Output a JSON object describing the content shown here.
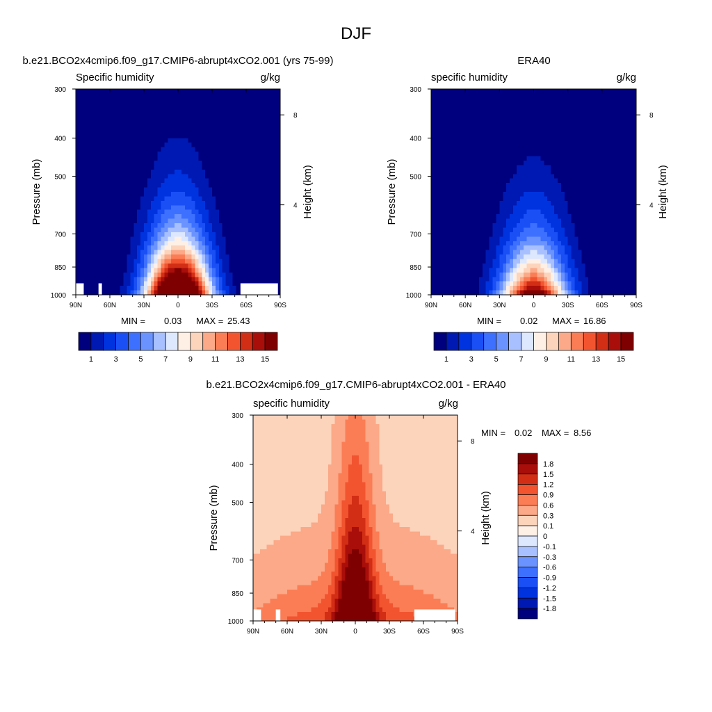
{
  "figure_title": "DJF",
  "colors": {
    "ramp15": [
      "#00007f",
      "#0019b2",
      "#0033e0",
      "#1a4ff5",
      "#3d70ff",
      "#6b93ff",
      "#a8c0ff",
      "#dde8ff",
      "#fff0e6",
      "#fcd3bb",
      "#fba988",
      "#fb7d55",
      "#f25430",
      "#d22e15",
      "#a90e0a",
      "#7f0000"
    ],
    "diff_ramp": [
      "#00007f",
      "#0019b2",
      "#0033e0",
      "#1a4ff5",
      "#3d70ff",
      "#6b93ff",
      "#a8c0ff",
      "#dde8ff",
      "#fff0e6",
      "#fcd3bb",
      "#fba988",
      "#fb7d55",
      "#f25430",
      "#d22e15",
      "#a90e0a",
      "#7f0000"
    ]
  },
  "chart_data": [
    {
      "id": "model",
      "type": "contour",
      "title": "b.e21.BCO2x4cmip6.f09_g17.CMIP6-abrupt4xCO2.001 (yrs 75-99)",
      "left_subtitle": "Specific humidity",
      "right_subtitle": "g/kg",
      "ylabel": "Pressure (mb)",
      "y2label": "Height (km)",
      "xticks": [
        "90N",
        "60N",
        "30N",
        "0",
        "30S",
        "60S",
        "90S"
      ],
      "yticks": [
        "300",
        "400",
        "500",
        "700",
        "850",
        "1000"
      ],
      "y2ticks": [
        "8",
        "4"
      ],
      "ylim": [
        1000,
        300
      ],
      "xlim": [
        "90N",
        "90S"
      ],
      "min_label": "MIN =",
      "min": "0.03",
      "max_label": "MAX =",
      "max": "25.43",
      "colorbar_labels": [
        "1",
        "3",
        "5",
        "7",
        "9",
        "11",
        "13",
        "15"
      ],
      "contour_levels": [
        1,
        2,
        3,
        4,
        5,
        6,
        7,
        8,
        9,
        10,
        11,
        12,
        13,
        14,
        15
      ],
      "peak_latitude": 0,
      "peak_value": 25.43,
      "grid": false
    },
    {
      "id": "obs",
      "type": "contour",
      "title": "ERA40",
      "left_subtitle": "specific humidity",
      "right_subtitle": "g/kg",
      "ylabel": "Pressure (mb)",
      "y2label": "Height (km)",
      "xticks": [
        "90N",
        "60N",
        "30N",
        "0",
        "30S",
        "60S",
        "90S"
      ],
      "yticks": [
        "300",
        "400",
        "500",
        "700",
        "850",
        "1000"
      ],
      "y2ticks": [
        "8",
        "4"
      ],
      "ylim": [
        1000,
        300
      ],
      "min_label": "MIN =",
      "min": "0.02",
      "max_label": "MAX =",
      "max": "16.86",
      "colorbar_labels": [
        "1",
        "3",
        "5",
        "7",
        "9",
        "11",
        "13",
        "15"
      ],
      "contour_levels": [
        1,
        2,
        3,
        4,
        5,
        6,
        7,
        8,
        9,
        10,
        11,
        12,
        13,
        14,
        15
      ],
      "peak_latitude": 0,
      "peak_value": 16.86,
      "grid": false
    },
    {
      "id": "diff",
      "type": "contour",
      "title": "b.e21.BCO2x4cmip6.f09_g17.CMIP6-abrupt4xCO2.001 - ERA40",
      "left_subtitle": "specific humidity",
      "right_subtitle": "g/kg",
      "ylabel": "Pressure (mb)",
      "y2label": "Height (km)",
      "xticks": [
        "90N",
        "60N",
        "30N",
        "0",
        "30S",
        "60S",
        "90S"
      ],
      "yticks": [
        "300",
        "400",
        "500",
        "700",
        "850",
        "1000"
      ],
      "y2ticks": [
        "8",
        "4"
      ],
      "ylim": [
        1000,
        300
      ],
      "min_label": "MIN =",
      "min": "0.02",
      "max_label": "MAX =",
      "max": "8.56",
      "colorbar_labels": [
        "1.8",
        "1.5",
        "1.2",
        "0.9",
        "0.6",
        "0.3",
        "0.1",
        "0",
        "-0.1",
        "-0.3",
        "-0.6",
        "-0.9",
        "-1.2",
        "-1.5",
        "-1.8"
      ],
      "contour_levels": [
        -1.8,
        -1.5,
        -1.2,
        -0.9,
        -0.6,
        -0.3,
        -0.1,
        0,
        0.1,
        0.3,
        0.6,
        0.9,
        1.2,
        1.5,
        1.8
      ],
      "grid": false
    }
  ]
}
